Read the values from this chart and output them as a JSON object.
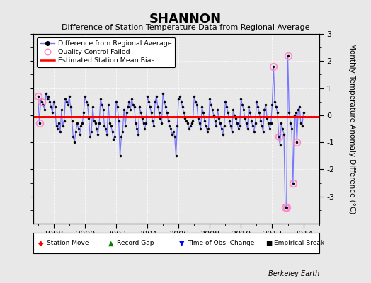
{
  "title": "SHANNON",
  "subtitle": "Difference of Station Temperature Data from Regional Average",
  "ylabel": "Monthly Temperature Anomaly Difference (°C)",
  "bias": -0.05,
  "xlim": [
    1996.7,
    2015.0
  ],
  "ylim": [
    -4.0,
    3.0
  ],
  "yticks": [
    -3,
    -2,
    -1,
    0,
    1,
    2,
    3
  ],
  "xticks": [
    1998,
    2000,
    2002,
    2004,
    2006,
    2008,
    2010,
    2012,
    2014
  ],
  "background_color": "#e8e8e8",
  "plot_bg_color": "#e8e8e8",
  "line_color": "#7777ff",
  "dot_color": "#000000",
  "bias_color": "#ff0000",
  "qc_color": "#ff88cc",
  "time_series": [
    [
      1997.0,
      0.7
    ],
    [
      1997.083,
      -0.3
    ],
    [
      1997.167,
      0.6
    ],
    [
      1997.25,
      0.5
    ],
    [
      1997.333,
      0.4
    ],
    [
      1997.417,
      0.2
    ],
    [
      1997.5,
      0.8
    ],
    [
      1997.583,
      0.6
    ],
    [
      1997.667,
      0.7
    ],
    [
      1997.75,
      0.5
    ],
    [
      1997.833,
      0.3
    ],
    [
      1997.917,
      0.1
    ],
    [
      1998.0,
      0.5
    ],
    [
      1998.083,
      0.3
    ],
    [
      1998.167,
      -0.4
    ],
    [
      1998.25,
      -0.5
    ],
    [
      1998.333,
      -0.3
    ],
    [
      1998.417,
      -0.6
    ],
    [
      1998.5,
      0.2
    ],
    [
      1998.583,
      -0.4
    ],
    [
      1998.667,
      -0.2
    ],
    [
      1998.75,
      0.6
    ],
    [
      1998.833,
      0.5
    ],
    [
      1998.917,
      0.4
    ],
    [
      1999.0,
      0.7
    ],
    [
      1999.083,
      0.3
    ],
    [
      1999.167,
      -0.2
    ],
    [
      1999.25,
      -0.8
    ],
    [
      1999.333,
      -1.0
    ],
    [
      1999.417,
      -0.6
    ],
    [
      1999.5,
      -0.3
    ],
    [
      1999.583,
      -0.5
    ],
    [
      1999.667,
      -0.7
    ],
    [
      1999.75,
      -0.4
    ],
    [
      1999.833,
      -0.3
    ],
    [
      1999.917,
      0.1
    ],
    [
      2000.0,
      0.7
    ],
    [
      2000.083,
      0.5
    ],
    [
      2000.167,
      0.4
    ],
    [
      2000.25,
      -0.1
    ],
    [
      2000.333,
      -0.8
    ],
    [
      2000.417,
      -0.6
    ],
    [
      2000.5,
      0.3
    ],
    [
      2000.583,
      -0.2
    ],
    [
      2000.667,
      -0.3
    ],
    [
      2000.75,
      -0.5
    ],
    [
      2000.833,
      -0.7
    ],
    [
      2000.917,
      -0.3
    ],
    [
      2001.0,
      0.6
    ],
    [
      2001.083,
      0.4
    ],
    [
      2001.167,
      0.2
    ],
    [
      2001.25,
      -0.4
    ],
    [
      2001.333,
      -0.5
    ],
    [
      2001.417,
      -0.7
    ],
    [
      2001.5,
      0.4
    ],
    [
      2001.583,
      -0.3
    ],
    [
      2001.667,
      -0.4
    ],
    [
      2001.75,
      -0.6
    ],
    [
      2001.833,
      -0.9
    ],
    [
      2001.917,
      -0.8
    ],
    [
      2002.0,
      0.5
    ],
    [
      2002.083,
      0.3
    ],
    [
      2002.167,
      -0.2
    ],
    [
      2002.25,
      -1.5
    ],
    [
      2002.333,
      -0.8
    ],
    [
      2002.417,
      -0.6
    ],
    [
      2002.5,
      0.2
    ],
    [
      2002.583,
      -0.4
    ],
    [
      2002.667,
      0.1
    ],
    [
      2002.75,
      0.3
    ],
    [
      2002.833,
      0.5
    ],
    [
      2002.917,
      0.2
    ],
    [
      2003.0,
      0.6
    ],
    [
      2003.083,
      0.4
    ],
    [
      2003.167,
      0.3
    ],
    [
      2003.25,
      -0.3
    ],
    [
      2003.333,
      -0.5
    ],
    [
      2003.417,
      -0.7
    ],
    [
      2003.5,
      0.3
    ],
    [
      2003.583,
      0.1
    ],
    [
      2003.667,
      -0.1
    ],
    [
      2003.75,
      -0.3
    ],
    [
      2003.833,
      -0.5
    ],
    [
      2003.917,
      -0.3
    ],
    [
      2004.0,
      0.7
    ],
    [
      2004.083,
      0.5
    ],
    [
      2004.167,
      0.3
    ],
    [
      2004.25,
      0.1
    ],
    [
      2004.333,
      -0.2
    ],
    [
      2004.417,
      -0.4
    ],
    [
      2004.5,
      0.5
    ],
    [
      2004.583,
      0.7
    ],
    [
      2004.667,
      0.3
    ],
    [
      2004.75,
      0.1
    ],
    [
      2004.833,
      -0.1
    ],
    [
      2004.917,
      -0.3
    ],
    [
      2005.0,
      0.8
    ],
    [
      2005.083,
      0.5
    ],
    [
      2005.167,
      0.3
    ],
    [
      2005.25,
      0.1
    ],
    [
      2005.333,
      -0.2
    ],
    [
      2005.417,
      -0.4
    ],
    [
      2005.5,
      -0.5
    ],
    [
      2005.583,
      -0.7
    ],
    [
      2005.667,
      -0.6
    ],
    [
      2005.75,
      -0.8
    ],
    [
      2005.833,
      -1.5
    ],
    [
      2005.917,
      -0.4
    ],
    [
      2006.0,
      0.6
    ],
    [
      2006.083,
      0.7
    ],
    [
      2006.167,
      0.5
    ],
    [
      2006.25,
      0.3
    ],
    [
      2006.333,
      0.1
    ],
    [
      2006.417,
      -0.1
    ],
    [
      2006.5,
      -0.2
    ],
    [
      2006.583,
      -0.3
    ],
    [
      2006.667,
      -0.5
    ],
    [
      2006.75,
      -0.4
    ],
    [
      2006.833,
      -0.3
    ],
    [
      2006.917,
      -0.2
    ],
    [
      2007.0,
      0.7
    ],
    [
      2007.083,
      0.5
    ],
    [
      2007.167,
      0.4
    ],
    [
      2007.25,
      -0.1
    ],
    [
      2007.333,
      -0.3
    ],
    [
      2007.417,
      -0.5
    ],
    [
      2007.5,
      0.3
    ],
    [
      2007.583,
      0.1
    ],
    [
      2007.667,
      -0.2
    ],
    [
      2007.75,
      -0.4
    ],
    [
      2007.833,
      -0.6
    ],
    [
      2007.917,
      -0.5
    ],
    [
      2008.0,
      0.6
    ],
    [
      2008.083,
      0.4
    ],
    [
      2008.167,
      0.2
    ],
    [
      2008.25,
      0.0
    ],
    [
      2008.333,
      -0.2
    ],
    [
      2008.417,
      -0.4
    ],
    [
      2008.5,
      0.2
    ],
    [
      2008.583,
      -0.1
    ],
    [
      2008.667,
      -0.3
    ],
    [
      2008.75,
      -0.5
    ],
    [
      2008.833,
      -0.7
    ],
    [
      2008.917,
      -0.4
    ],
    [
      2009.0,
      0.5
    ],
    [
      2009.083,
      0.3
    ],
    [
      2009.167,
      0.1
    ],
    [
      2009.25,
      -0.2
    ],
    [
      2009.333,
      -0.4
    ],
    [
      2009.417,
      -0.6
    ],
    [
      2009.5,
      0.2
    ],
    [
      2009.583,
      0.0
    ],
    [
      2009.667,
      -0.1
    ],
    [
      2009.75,
      -0.3
    ],
    [
      2009.833,
      -0.5
    ],
    [
      2009.917,
      -0.4
    ],
    [
      2010.0,
      0.6
    ],
    [
      2010.083,
      0.4
    ],
    [
      2010.167,
      0.2
    ],
    [
      2010.25,
      -0.1
    ],
    [
      2010.333,
      -0.3
    ],
    [
      2010.417,
      -0.5
    ],
    [
      2010.5,
      0.3
    ],
    [
      2010.583,
      0.1
    ],
    [
      2010.667,
      -0.2
    ],
    [
      2010.75,
      -0.4
    ],
    [
      2010.833,
      -0.6
    ],
    [
      2010.917,
      -0.3
    ],
    [
      2011.0,
      0.5
    ],
    [
      2011.083,
      0.3
    ],
    [
      2011.167,
      0.1
    ],
    [
      2011.25,
      -0.2
    ],
    [
      2011.333,
      -0.4
    ],
    [
      2011.417,
      -0.6
    ],
    [
      2011.5,
      0.2
    ],
    [
      2011.583,
      0.4
    ],
    [
      2011.667,
      -0.1
    ],
    [
      2011.75,
      -0.3
    ],
    [
      2011.833,
      -0.5
    ],
    [
      2011.917,
      -0.3
    ],
    [
      2012.0,
      0.4
    ],
    [
      2012.083,
      1.8
    ],
    [
      2012.167,
      0.5
    ],
    [
      2012.25,
      0.3
    ],
    [
      2012.333,
      0.1
    ],
    [
      2012.417,
      -0.8
    ],
    [
      2012.5,
      -1.1
    ],
    [
      2012.583,
      -0.3
    ],
    [
      2012.667,
      -0.5
    ],
    [
      2012.75,
      -0.7
    ],
    [
      2012.833,
      -3.4
    ],
    [
      2012.917,
      -3.4
    ],
    [
      2013.0,
      2.2
    ],
    [
      2013.083,
      0.1
    ],
    [
      2013.167,
      -0.3
    ],
    [
      2013.25,
      -0.5
    ],
    [
      2013.333,
      -2.5
    ],
    [
      2013.417,
      0.0
    ],
    [
      2013.5,
      0.1
    ],
    [
      2013.583,
      -1.0
    ],
    [
      2013.667,
      0.2
    ],
    [
      2013.75,
      0.3
    ],
    [
      2013.833,
      -0.3
    ],
    [
      2013.917,
      -0.4
    ],
    [
      2014.0,
      0.1
    ]
  ],
  "qc_failed": [
    [
      1997.0,
      0.7
    ],
    [
      1997.083,
      -0.3
    ],
    [
      1997.25,
      0.5
    ],
    [
      2012.083,
      1.8
    ],
    [
      2012.417,
      -0.8
    ],
    [
      2012.833,
      -3.4
    ],
    [
      2012.917,
      -3.4
    ],
    [
      2013.0,
      2.2
    ],
    [
      2013.333,
      -2.5
    ],
    [
      2013.583,
      -1.0
    ]
  ]
}
